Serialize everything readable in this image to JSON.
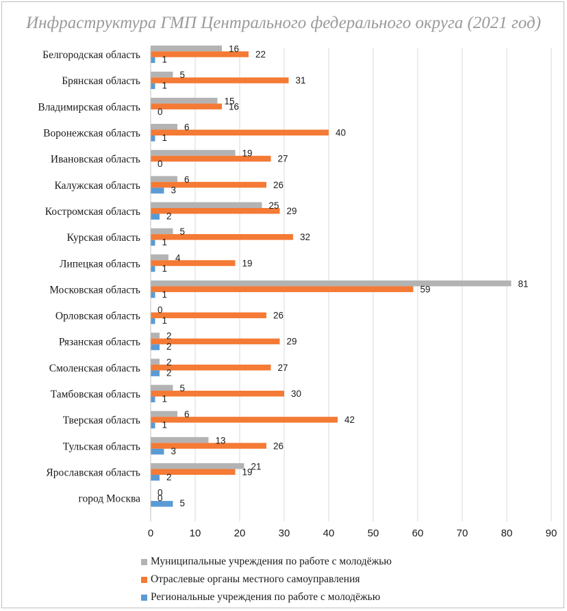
{
  "chart_data": {
    "type": "bar",
    "orientation": "horizontal",
    "title": "Инфраструктура ГМП Центрального федерального округа (2021 год)",
    "categories": [
      "Белгородская область",
      "Брянская область",
      "Владимирская область",
      "Воронежская область",
      "Ивановская область",
      "Калужская область",
      "Костромская область",
      "Курская область",
      "Липецкая область",
      "Московская область",
      "Орловская область",
      "Рязанская область",
      "Смоленская область",
      "Тамбовская область",
      "Тверская область",
      "Тульская область",
      "Ярославская область",
      "город Москва"
    ],
    "series": [
      {
        "name": "Муниципальные учреждения по работе с молодёжью",
        "color": "#b3b3b3",
        "values": [
          16,
          5,
          15,
          6,
          19,
          6,
          25,
          5,
          4,
          81,
          0,
          2,
          2,
          5,
          6,
          13,
          21,
          0
        ]
      },
      {
        "name": "Отраслевые органы местного самоуправления",
        "color": "#f47a35",
        "values": [
          22,
          31,
          16,
          40,
          27,
          26,
          29,
          32,
          19,
          59,
          26,
          29,
          27,
          30,
          42,
          26,
          19,
          0
        ]
      },
      {
        "name": "Региональные учреждения по работе с молодёжью",
        "color": "#5b9bd5",
        "values": [
          1,
          1,
          0,
          1,
          0,
          3,
          2,
          1,
          1,
          1,
          1,
          2,
          2,
          1,
          1,
          3,
          2,
          5
        ]
      }
    ],
    "xlim": [
      0,
      90
    ],
    "xticks": [
      0,
      10,
      20,
      30,
      40,
      50,
      60,
      70,
      80,
      90
    ],
    "xlabel": "",
    "ylabel": "",
    "grid": "vertical",
    "legend_position": "bottom"
  }
}
